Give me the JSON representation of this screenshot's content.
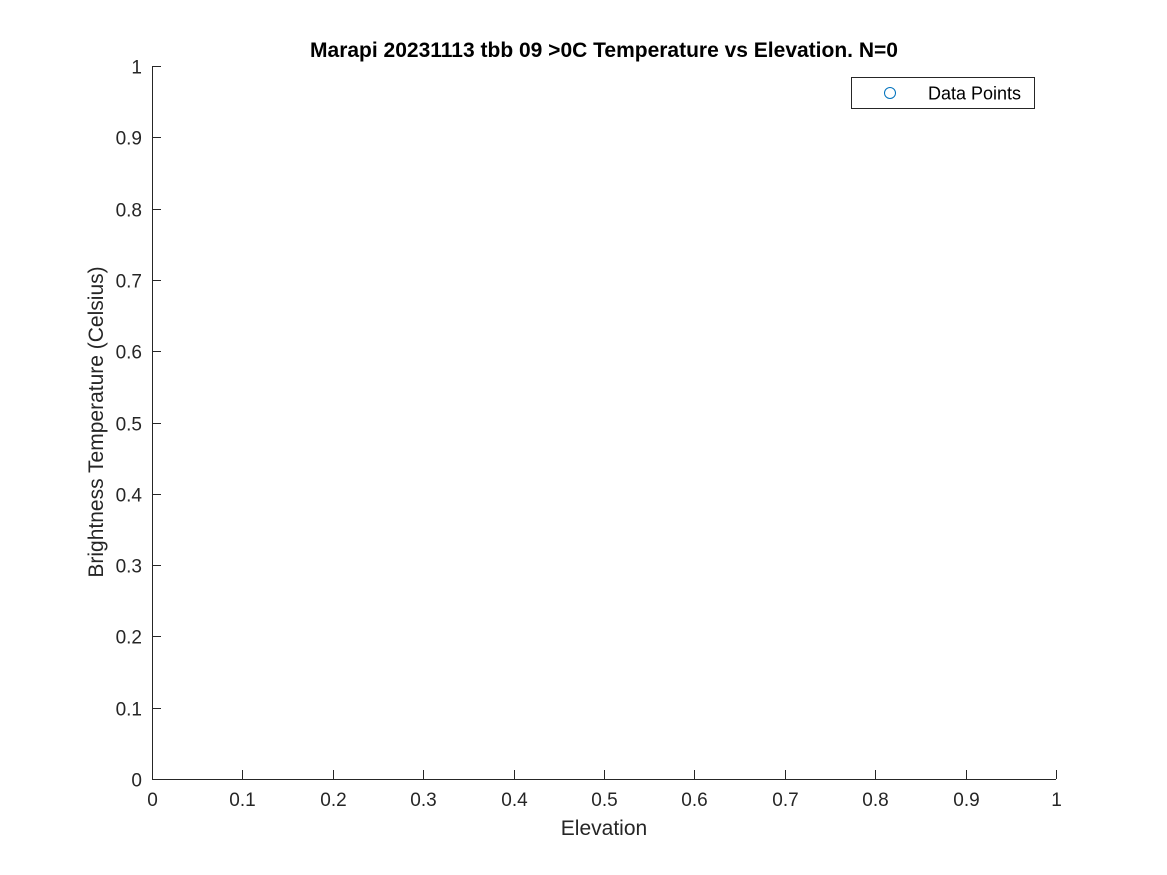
{
  "chart_data": {
    "type": "scatter",
    "title": "Marapi 20231113 tbb 09 >0C Temperature vs Elevation. N=0",
    "xlabel": "Elevation",
    "ylabel": "Brightness Temperature (Celsius)",
    "xlim": [
      0,
      1
    ],
    "ylim": [
      0,
      1
    ],
    "xticks": [
      "0",
      "0.1",
      "0.2",
      "0.3",
      "0.4",
      "0.5",
      "0.6",
      "0.7",
      "0.8",
      "0.9",
      "1"
    ],
    "yticks": [
      "0",
      "0.1",
      "0.2",
      "0.3",
      "0.4",
      "0.5",
      "0.6",
      "0.7",
      "0.8",
      "0.9",
      "1"
    ],
    "grid": false,
    "legend_position": "top-right",
    "series": [
      {
        "name": "Data Points",
        "marker": "circle-open",
        "color": "#0072BD",
        "x": [],
        "y": []
      }
    ]
  }
}
